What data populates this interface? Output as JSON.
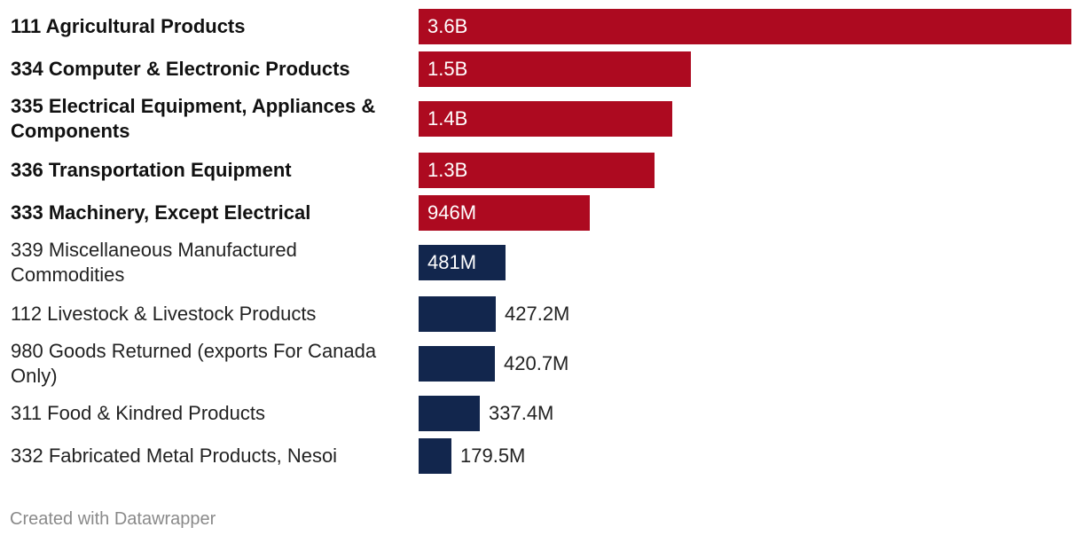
{
  "chart_data": {
    "type": "bar",
    "orientation": "horizontal",
    "title": "",
    "xlabel": "",
    "ylabel": "",
    "categories": [
      "111 Agricultural Products",
      "334 Computer & Electronic Products",
      "335 Electrical Equipment, Appliances & Components",
      "336 Transportation Equipment",
      "333 Machinery, Except Electrical",
      "339 Miscellaneous Manufactured Commodities",
      "112 Livestock & Livestock Products",
      "980 Goods Returned (exports For Canada Only)",
      "311 Food & Kindred Products",
      "332 Fabricated Metal Products, Nesoi"
    ],
    "values": [
      3600000000,
      1500000000,
      1400000000,
      1300000000,
      946000000,
      481000000,
      427200000,
      420700000,
      337400000,
      179500000
    ],
    "value_labels": [
      "3.6B",
      "1.5B",
      "1.4B",
      "1.3B",
      "946M",
      "481M",
      "427.2M",
      "420.7M",
      "337.4M",
      "179.5M"
    ],
    "highlighted": [
      true,
      true,
      true,
      true,
      true,
      false,
      false,
      false,
      false,
      false
    ],
    "xlim": [
      0,
      3600000000
    ],
    "colors": {
      "highlight": "#ad0a20",
      "default": "#12264d"
    }
  },
  "footer": {
    "credit": "Created with Datawrapper"
  }
}
